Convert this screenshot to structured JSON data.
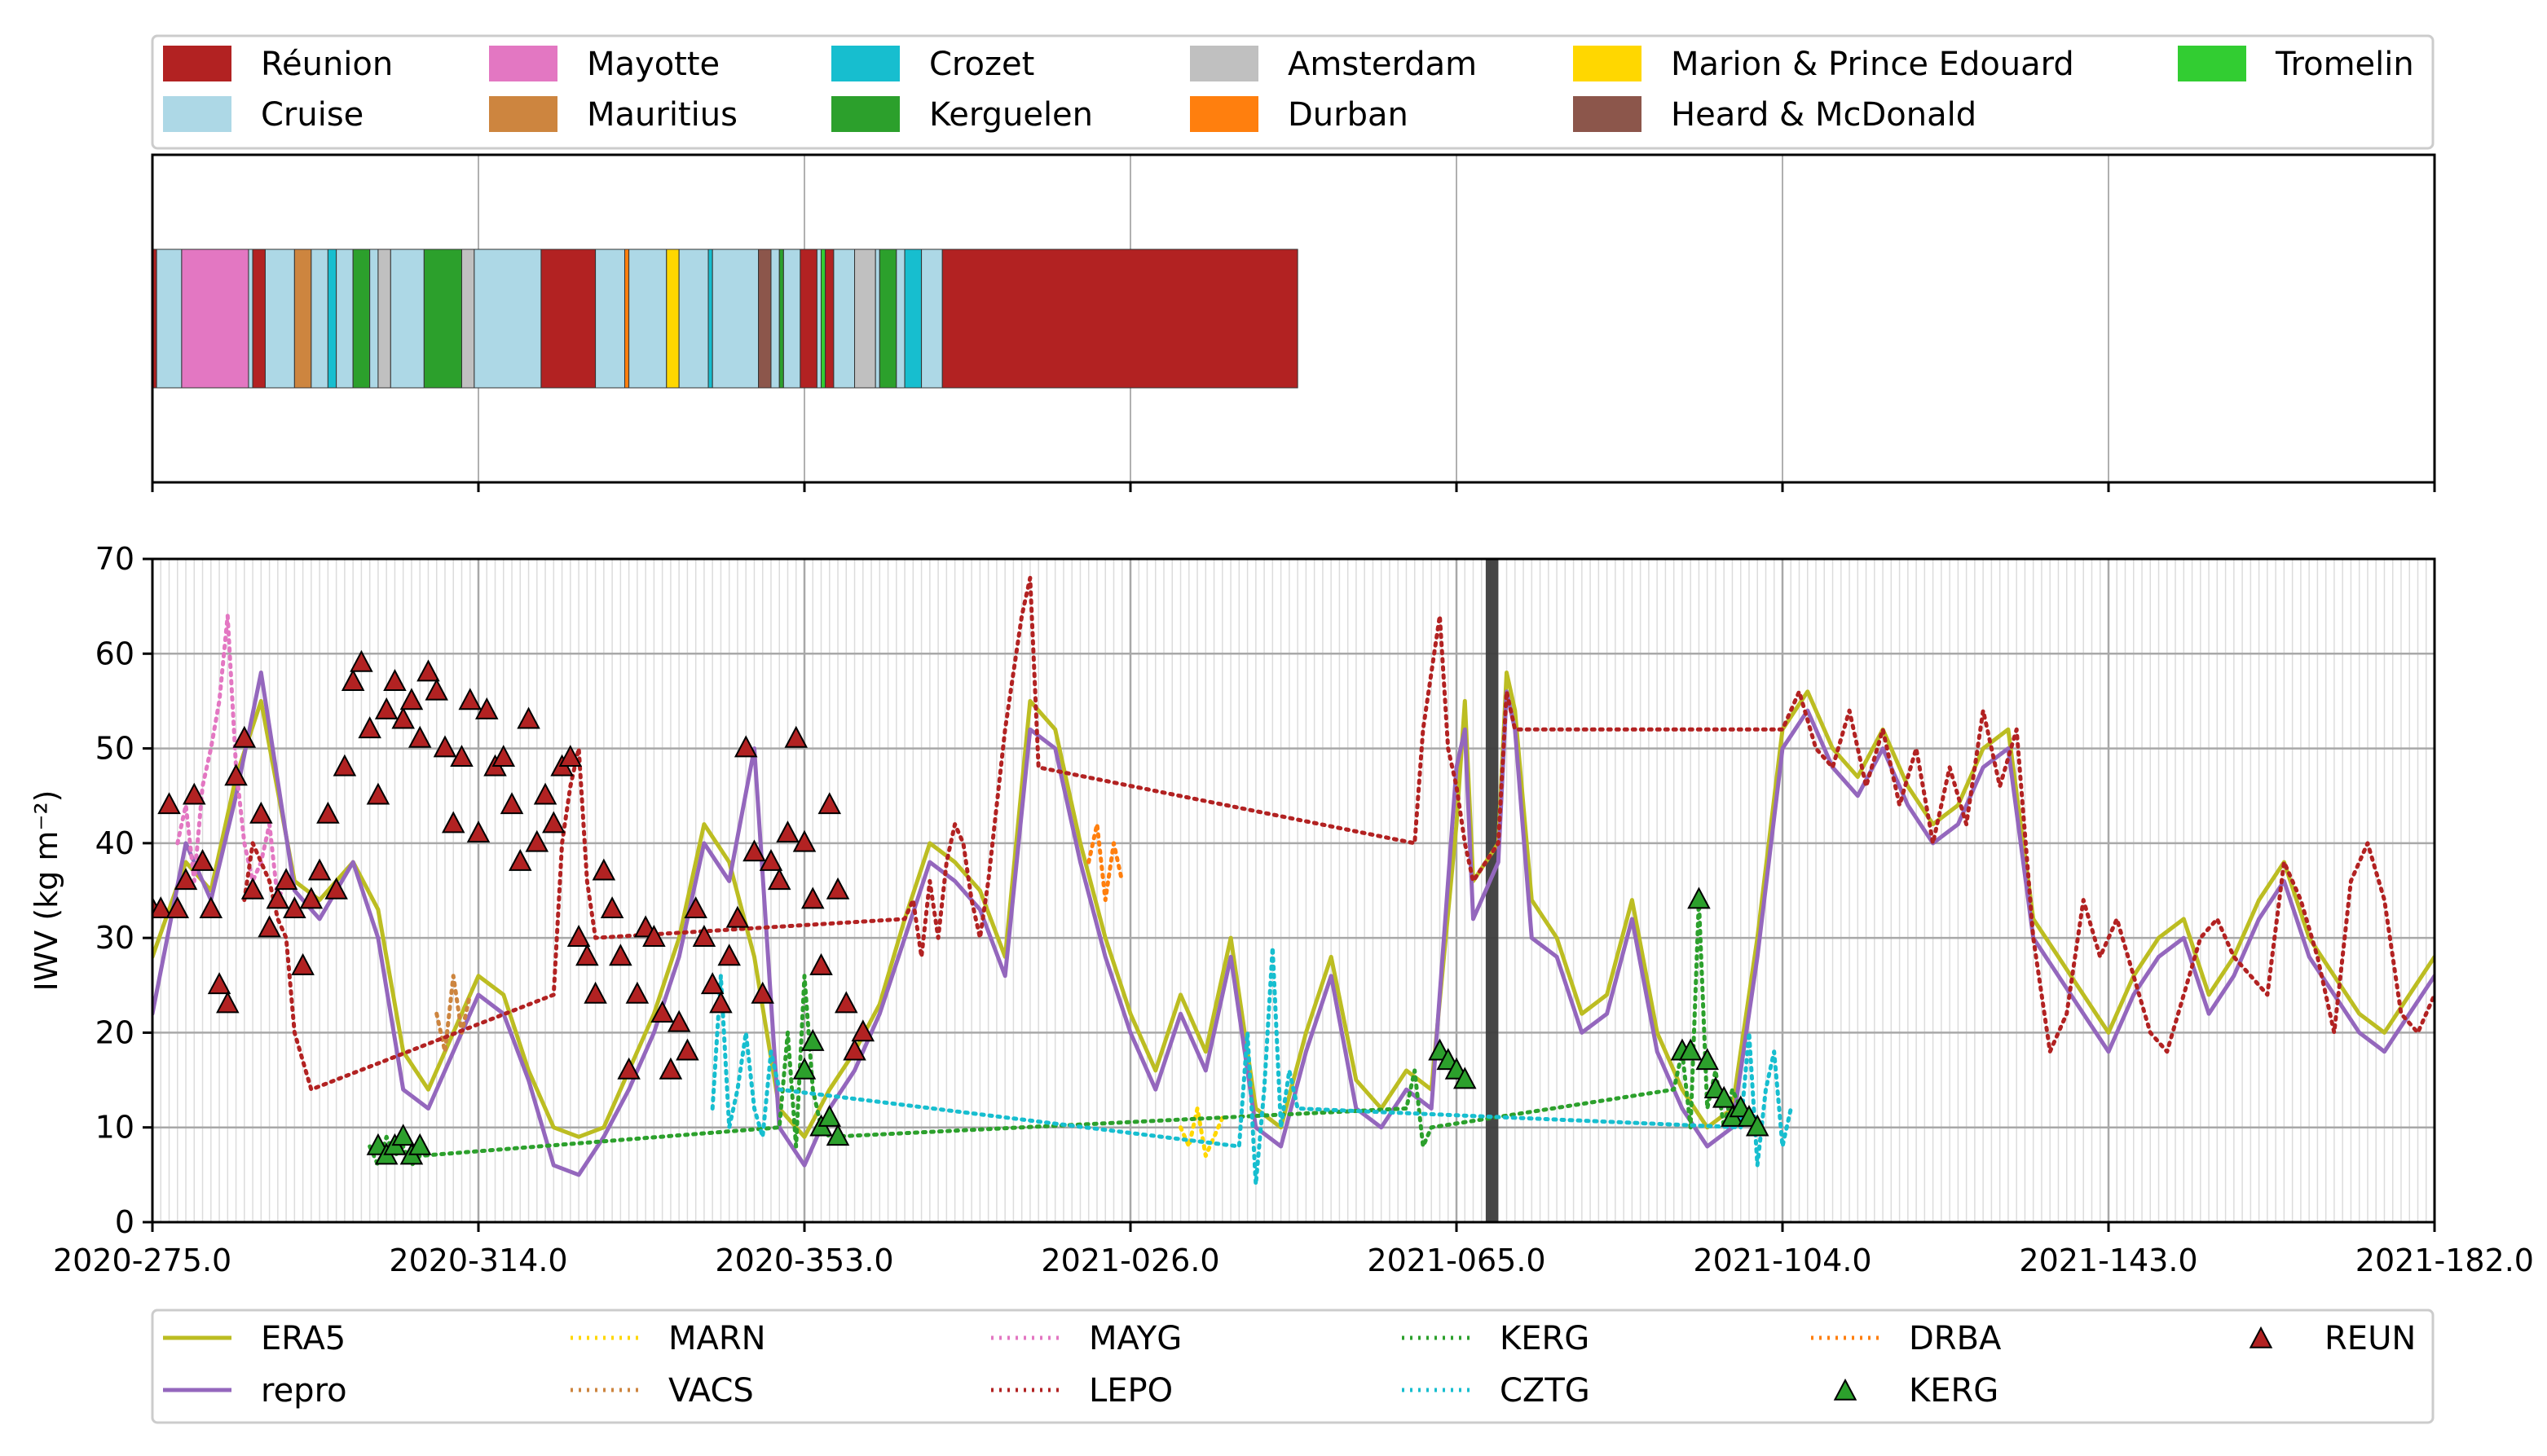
{
  "location_legend": [
    {
      "label": "Réunion",
      "color": "#b22222"
    },
    {
      "label": "Cruise",
      "color": "#add8e6"
    },
    {
      "label": "Mayotte",
      "color": "#e377c2"
    },
    {
      "label": "Mauritius",
      "color": "#cd853f"
    },
    {
      "label": "Crozet",
      "color": "#17becf"
    },
    {
      "label": "Kerguelen",
      "color": "#2ca02c"
    },
    {
      "label": "Amsterdam",
      "color": "#c0c0c0"
    },
    {
      "label": "Durban",
      "color": "#ff7f0e"
    },
    {
      "label": "Marion & Prince Edouard",
      "color": "#ffd700"
    },
    {
      "label": "Heard & McDonald",
      "color": "#8c564b"
    },
    {
      "label": "Tromelin",
      "color": "#32cd32"
    }
  ],
  "location_timeline": [
    {
      "start": 275.0,
      "end": 275.5,
      "location": "Réunion"
    },
    {
      "start": 275.5,
      "end": 278.5,
      "location": "Cruise"
    },
    {
      "start": 278.5,
      "end": 286.5,
      "location": "Mayotte"
    },
    {
      "start": 286.5,
      "end": 287.0,
      "location": "Cruise"
    },
    {
      "start": 287.0,
      "end": 288.5,
      "location": "Réunion"
    },
    {
      "start": 288.5,
      "end": 292.0,
      "location": "Cruise"
    },
    {
      "start": 292.0,
      "end": 294.0,
      "location": "Mauritius"
    },
    {
      "start": 294.0,
      "end": 296.0,
      "location": "Cruise"
    },
    {
      "start": 296.0,
      "end": 297.0,
      "location": "Crozet"
    },
    {
      "start": 297.0,
      "end": 299.0,
      "location": "Cruise"
    },
    {
      "start": 299.0,
      "end": 301.0,
      "location": "Kerguelen"
    },
    {
      "start": 301.0,
      "end": 302.0,
      "location": "Cruise"
    },
    {
      "start": 302.0,
      "end": 303.5,
      "location": "Amsterdam"
    },
    {
      "start": 303.5,
      "end": 307.5,
      "location": "Cruise"
    },
    {
      "start": 307.5,
      "end": 312.0,
      "location": "Kerguelen"
    },
    {
      "start": 312.0,
      "end": 313.5,
      "location": "Amsterdam"
    },
    {
      "start": 313.5,
      "end": 321.5,
      "location": "Cruise"
    },
    {
      "start": 321.5,
      "end": 328.0,
      "location": "Réunion"
    },
    {
      "start": 328.0,
      "end": 331.5,
      "location": "Cruise"
    },
    {
      "start": 331.5,
      "end": 332.0,
      "location": "Durban"
    },
    {
      "start": 332.0,
      "end": 336.5,
      "location": "Cruise"
    },
    {
      "start": 336.5,
      "end": 338.0,
      "location": "Marion & Prince Edouard"
    },
    {
      "start": 338.0,
      "end": 341.5,
      "location": "Cruise"
    },
    {
      "start": 341.5,
      "end": 342.0,
      "location": "Crozet"
    },
    {
      "start": 342.0,
      "end": 347.5,
      "location": "Cruise"
    },
    {
      "start": 347.5,
      "end": 349.0,
      "location": "Heard & McDonald"
    },
    {
      "start": 349.0,
      "end": 350.0,
      "location": "Cruise"
    },
    {
      "start": 350.0,
      "end": 350.5,
      "location": "Kerguelen"
    },
    {
      "start": 350.5,
      "end": 352.5,
      "location": "Cruise"
    },
    {
      "start": 352.5,
      "end": 354.5,
      "location": "Réunion"
    },
    {
      "start": 354.5,
      "end": 355.0,
      "location": "Cruise"
    },
    {
      "start": 355.0,
      "end": 355.5,
      "location": "Tromelin"
    },
    {
      "start": 355.5,
      "end": 356.5,
      "location": "Réunion"
    },
    {
      "start": 356.5,
      "end": 359.0,
      "location": "Cruise"
    },
    {
      "start": 359.0,
      "end": 361.5,
      "location": "Amsterdam"
    },
    {
      "start": 361.5,
      "end": 362.0,
      "location": "Cruise"
    },
    {
      "start": 362.0,
      "end": 364.0,
      "location": "Kerguelen"
    },
    {
      "start": 364.0,
      "end": 365.0,
      "location": "Cruise"
    },
    {
      "start": 365.0,
      "end": 367.0,
      "location": "Crozet"
    },
    {
      "start": 367.0,
      "end": 369.5,
      "location": "Cruise"
    },
    {
      "start": 369.5,
      "end": 412.0,
      "location": "Réunion"
    }
  ],
  "chart_data": {
    "type": "line",
    "xlabel": "",
    "ylabel": "IWV (kg m⁻²)",
    "x_tick_labels": [
      "2020-275.0",
      "2020-314.0",
      "2020-353.0",
      "2021-026.0",
      "2021-065.0",
      "2021-104.0",
      "2021-143.0",
      "2021-182.0"
    ],
    "x_ticks": [
      275.0,
      314.0,
      353.0,
      392.0,
      431.0,
      470.0,
      509.0,
      548.0
    ],
    "xlim": [
      275.0,
      548.0
    ],
    "ylim": [
      0,
      70
    ],
    "y_ticks": [
      0,
      10,
      20,
      30,
      40,
      50,
      60,
      70
    ],
    "grid": true,
    "legend_placement": "bottom",
    "gap_band": {
      "start": 434.5,
      "end": 436.0,
      "color": "#3c3c3c"
    },
    "series": [
      {
        "name": "ERA5",
        "style": "solid",
        "color": "#bcbd22",
        "x": [
          275,
          279,
          282,
          285,
          288,
          292,
          295,
          299,
          302,
          305,
          308,
          311,
          314,
          317,
          320,
          323,
          326,
          329,
          332,
          335,
          338,
          341,
          344,
          347,
          350,
          353,
          356,
          359,
          362,
          365,
          368,
          371,
          374,
          377,
          380,
          383,
          386,
          389,
          392,
          395,
          398,
          401,
          404,
          407,
          410,
          413,
          416,
          419,
          422,
          425,
          428,
          431,
          432,
          433,
          436,
          437,
          438,
          440,
          443,
          446,
          449,
          452,
          455,
          458,
          461,
          464,
          467,
          470,
          473,
          476,
          479,
          482,
          485,
          488,
          491,
          494,
          497,
          500,
          503,
          506,
          509,
          512,
          515,
          518,
          521,
          524,
          527,
          530,
          533,
          536,
          539,
          542,
          545,
          548
        ],
        "y": [
          28,
          38,
          35,
          47,
          55,
          36,
          34,
          38,
          33,
          18,
          14,
          20,
          26,
          24,
          16,
          10,
          9,
          10,
          16,
          22,
          30,
          42,
          38,
          28,
          12,
          9,
          14,
          18,
          23,
          32,
          40,
          38,
          35,
          28,
          55,
          52,
          40,
          30,
          22,
          16,
          24,
          18,
          30,
          12,
          10,
          20,
          28,
          15,
          12,
          16,
          14,
          42,
          55,
          36,
          40,
          58,
          54,
          34,
          30,
          22,
          24,
          34,
          20,
          14,
          10,
          12,
          30,
          52,
          56,
          50,
          47,
          52,
          46,
          42,
          44,
          50,
          52,
          32,
          28,
          24,
          20,
          26,
          30,
          32,
          24,
          28,
          34,
          38,
          30,
          26,
          22,
          20,
          24,
          28
        ]
      },
      {
        "name": "repro",
        "style": "solid",
        "color": "#9467bd",
        "x": [
          275,
          279,
          282,
          285,
          288,
          292,
          295,
          299,
          302,
          305,
          308,
          311,
          314,
          317,
          320,
          323,
          326,
          329,
          332,
          335,
          338,
          341,
          344,
          347,
          350,
          353,
          356,
          359,
          362,
          365,
          368,
          371,
          374,
          377,
          380,
          383,
          386,
          389,
          392,
          395,
          398,
          401,
          404,
          407,
          410,
          413,
          416,
          419,
          422,
          425,
          428,
          431,
          432,
          433,
          436,
          437,
          438,
          440,
          443,
          446,
          449,
          452,
          455,
          458,
          461,
          464,
          467,
          470,
          473,
          476,
          479,
          482,
          485,
          488,
          491,
          494,
          497,
          500,
          503,
          506,
          509,
          512,
          515,
          518,
          521,
          524,
          527,
          530,
          533,
          536,
          539,
          542,
          545,
          548
        ],
        "y": [
          22,
          40,
          34,
          45,
          58,
          35,
          32,
          38,
          30,
          14,
          12,
          18,
          24,
          22,
          15,
          6,
          5,
          9,
          14,
          20,
          28,
          40,
          36,
          50,
          10,
          6,
          12,
          16,
          22,
          30,
          38,
          36,
          33,
          26,
          52,
          50,
          38,
          28,
          20,
          14,
          22,
          16,
          28,
          10,
          8,
          18,
          26,
          12,
          10,
          14,
          12,
          48,
          52,
          32,
          38,
          56,
          52,
          30,
          28,
          20,
          22,
          32,
          18,
          12,
          8,
          10,
          28,
          50,
          54,
          48,
          45,
          50,
          44,
          40,
          42,
          48,
          50,
          30,
          26,
          22,
          18,
          24,
          28,
          30,
          22,
          26,
          32,
          36,
          28,
          24,
          20,
          18,
          22,
          26
        ]
      },
      {
        "name": "MARN",
        "style": "dotted",
        "color": "#ffd700",
        "x": [
          398,
          399,
          400,
          401,
          402,
          403
        ],
        "y": [
          10,
          8,
          12,
          7,
          9,
          11
        ]
      },
      {
        "name": "VACS",
        "style": "dotted",
        "color": "#cd853f",
        "x": [
          309,
          310,
          311,
          312,
          313
        ],
        "y": [
          22,
          18,
          26,
          20,
          24
        ]
      },
      {
        "name": "MAYG",
        "style": "dotted",
        "color": "#e377c2",
        "x": [
          278,
          279,
          280,
          281,
          282,
          283,
          284,
          285,
          286,
          287,
          288,
          289,
          290,
          291
        ],
        "y": [
          40,
          44,
          36,
          46,
          50,
          55,
          64,
          48,
          40,
          36,
          38,
          42,
          34,
          36
        ]
      },
      {
        "name": "LEPO",
        "style": "dotted",
        "color": "#b22222",
        "x": [
          286,
          287,
          288,
          289,
          290,
          291,
          292,
          294,
          323,
          324,
          325,
          326,
          327,
          328,
          365,
          366,
          367,
          368,
          369,
          370,
          371,
          372,
          373,
          374,
          375,
          376,
          377,
          378,
          379,
          380,
          381,
          426,
          427,
          428,
          429,
          430,
          431,
          432,
          433,
          436,
          437,
          438,
          470,
          472,
          474,
          476,
          478,
          480,
          482,
          484,
          486,
          488,
          490,
          492,
          494,
          496,
          498,
          500,
          502,
          504,
          506,
          508,
          510,
          512,
          514,
          516,
          518,
          520,
          522,
          524,
          526,
          528,
          530,
          532,
          534,
          536,
          538,
          540,
          542,
          544,
          546,
          548
        ],
        "y": [
          34,
          40,
          38,
          36,
          32,
          30,
          20,
          14,
          24,
          40,
          46,
          50,
          36,
          30,
          32,
          34,
          28,
          36,
          30,
          38,
          42,
          40,
          34,
          30,
          36,
          44,
          52,
          58,
          64,
          68,
          48,
          40,
          52,
          58,
          64,
          50,
          46,
          40,
          36,
          40,
          56,
          52,
          52,
          56,
          50,
          48,
          54,
          46,
          52,
          44,
          50,
          40,
          48,
          42,
          54,
          46,
          52,
          30,
          18,
          22,
          34,
          28,
          32,
          26,
          20,
          18,
          24,
          30,
          32,
          28,
          26,
          24,
          38,
          34,
          28,
          20,
          36,
          40,
          34,
          22,
          20,
          24
        ]
      },
      {
        "name": "KERG",
        "style": "dotted",
        "color": "#2ca02c",
        "x": [
          301,
          302,
          303,
          304,
          305,
          306,
          307,
          350,
          351,
          352,
          353,
          354,
          355,
          356,
          425,
          426,
          427,
          428,
          457,
          458,
          459,
          460,
          461,
          462,
          463,
          464,
          465
        ],
        "y": [
          8,
          6,
          9,
          7,
          8,
          6,
          7,
          10,
          20,
          8,
          26,
          14,
          10,
          9,
          12,
          16,
          8,
          10,
          14,
          18,
          10,
          34,
          12,
          16,
          10,
          14,
          12
        ]
      },
      {
        "name": "CZTG",
        "style": "dotted",
        "color": "#17becf",
        "x": [
          342,
          343,
          344,
          345,
          346,
          347,
          348,
          349,
          350,
          405,
          406,
          407,
          408,
          409,
          410,
          411,
          412,
          465,
          466,
          467,
          468,
          469,
          470,
          471
        ],
        "y": [
          12,
          26,
          10,
          14,
          20,
          12,
          9,
          18,
          14,
          8,
          20,
          4,
          14,
          29,
          10,
          16,
          12,
          10,
          20,
          6,
          14,
          18,
          8,
          12
        ]
      },
      {
        "name": "DRBA",
        "style": "dotted",
        "color": "#ff7f0e",
        "x": [
          387,
          388,
          389,
          390,
          391
        ],
        "y": [
          38,
          42,
          34,
          40,
          36
        ]
      }
    ],
    "markers": [
      {
        "name": "KERG",
        "shape": "triangle",
        "color": "#2ca02c",
        "x": [
          302,
          303,
          304,
          305,
          306,
          307,
          353,
          354,
          355,
          356,
          357,
          458,
          459,
          460,
          461,
          462,
          463,
          464,
          465,
          466,
          467,
          429,
          430,
          431,
          432
        ],
        "y": [
          8,
          7,
          8,
          9,
          7,
          8,
          16,
          19,
          10,
          11,
          9,
          18,
          18,
          34,
          17,
          14,
          13,
          11,
          12,
          11,
          10,
          18,
          17,
          16,
          15
        ]
      },
      {
        "name": "REUN",
        "shape": "triangle",
        "color": "#b22222",
        "x": [
          275,
          276,
          277,
          278,
          279,
          280,
          281,
          282,
          283,
          284,
          285,
          286,
          287,
          288,
          289,
          290,
          291,
          292,
          293,
          294,
          295,
          296,
          297,
          298,
          299,
          300,
          301,
          302,
          303,
          304,
          305,
          306,
          307,
          308,
          309,
          310,
          311,
          312,
          313,
          314,
          315,
          316,
          317,
          318,
          319,
          320,
          321,
          322,
          323,
          324,
          325,
          326,
          327,
          328,
          329,
          330,
          331,
          332,
          333,
          334,
          335,
          336,
          337,
          338,
          339,
          340,
          341,
          342,
          343,
          344,
          345,
          346,
          347,
          348,
          349,
          350,
          351,
          352,
          353,
          354,
          355,
          356,
          357,
          358,
          359,
          360
        ],
        "y": [
          33,
          33,
          44,
          33,
          36,
          45,
          38,
          33,
          25,
          23,
          47,
          51,
          35,
          43,
          31,
          34,
          36,
          33,
          27,
          34,
          37,
          43,
          35,
          48,
          57,
          59,
          52,
          45,
          54,
          57,
          53,
          55,
          51,
          58,
          56,
          50,
          42,
          49,
          55,
          41,
          54,
          48,
          49,
          44,
          38,
          53,
          40,
          45,
          42,
          48,
          49,
          30,
          28,
          24,
          37,
          33,
          28,
          16,
          24,
          31,
          30,
          22,
          16,
          21,
          18,
          33,
          30,
          25,
          23,
          28,
          32,
          50,
          39,
          24,
          38,
          36,
          41,
          51,
          40,
          34,
          27,
          44,
          35,
          23,
          18,
          20
        ]
      }
    ]
  }
}
